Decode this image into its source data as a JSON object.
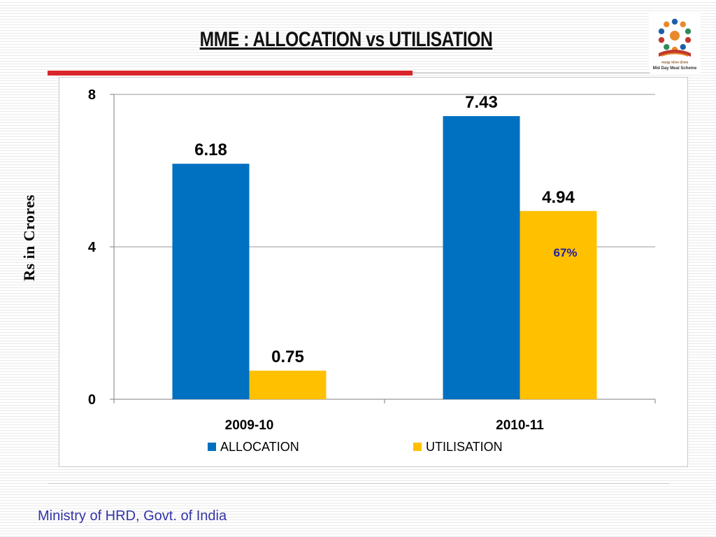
{
  "slide": {
    "title": "MME : ALLOCATION vs UTILISATION",
    "footer": "Ministry of HRD, Govt. of India",
    "logo_caption": "Mid Day Meal Scheme",
    "logo_caption_hindi": "मध्याह्न भोजन योजना",
    "logo_icon": "mid-day-meal-logo-icon"
  },
  "colors": {
    "allocation": "#0070c0",
    "utilisation": "#ffc000",
    "title_rule": "#d9252b",
    "footer_text": "#3333a8",
    "annotation": "#1f1fa8"
  },
  "chart_data": {
    "type": "bar",
    "title": "",
    "xlabel": "",
    "ylabel": "Rs in Crores",
    "categories": [
      "2009-10",
      "2010-11"
    ],
    "series": [
      {
        "name": "ALLOCATION",
        "values": [
          6.18,
          7.43
        ],
        "labels": [
          "6.18",
          "7.43"
        ]
      },
      {
        "name": "UTILISATION",
        "values": [
          0.75,
          4.94
        ],
        "labels": [
          "0.75",
          "4.94"
        ]
      }
    ],
    "ylim": [
      0,
      8
    ],
    "yticks": [
      0,
      4,
      8
    ],
    "ytick_labels": [
      "0",
      "4",
      "8"
    ],
    "grid": true,
    "legend_position": "bottom",
    "annotations": [
      {
        "text": "67%",
        "category": "2010-11",
        "series": "UTILISATION"
      }
    ]
  }
}
